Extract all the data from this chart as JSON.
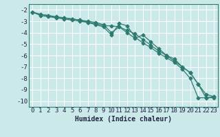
{
  "xlabel": "Humidex (Indice chaleur)",
  "background_color": "#cce9e9",
  "grid_color": "#ffffff",
  "line_color": "#2e7a6e",
  "xlim": [
    -0.5,
    23.5
  ],
  "ylim": [
    -10.5,
    -1.5
  ],
  "yticks": [
    -2,
    -3,
    -4,
    -5,
    -6,
    -7,
    -8,
    -9,
    -10
  ],
  "xticks": [
    0,
    1,
    2,
    3,
    4,
    5,
    6,
    7,
    8,
    9,
    10,
    11,
    12,
    13,
    14,
    15,
    16,
    17,
    18,
    19,
    20,
    21,
    22,
    23
  ],
  "series": [
    {
      "x": [
        0,
        1,
        2,
        3,
        4,
        5,
        6,
        7,
        8,
        9,
        10,
        11,
        12,
        13,
        14,
        15,
        16,
        17,
        18,
        19,
        20,
        21,
        22,
        23
      ],
      "y": [
        -2.2,
        -2.5,
        -2.6,
        -2.7,
        -2.8,
        -2.9,
        -3.0,
        -3.1,
        -3.3,
        -3.5,
        -4.2,
        -3.2,
        -3.4,
        -4.4,
        -4.9,
        -5.3,
        -5.8,
        -6.2,
        -6.6,
        -7.2,
        -8.0,
        -9.7,
        -9.7,
        -9.7
      ]
    },
    {
      "x": [
        0,
        1,
        2,
        3,
        4,
        5,
        6,
        7,
        8,
        9,
        10,
        11,
        12,
        13,
        14,
        15,
        16,
        17,
        18,
        19,
        20,
        21,
        22,
        23
      ],
      "y": [
        -2.2,
        -2.4,
        -2.5,
        -2.6,
        -2.7,
        -2.8,
        -2.9,
        -3.0,
        -3.1,
        -3.3,
        -4.0,
        -3.5,
        -4.0,
        -4.5,
        -4.2,
        -4.8,
        -5.4,
        -6.0,
        -6.3,
        -7.0,
        -7.5,
        -8.5,
        -9.7,
        -9.6
      ]
    },
    {
      "x": [
        0,
        1,
        2,
        3,
        4,
        5,
        6,
        7,
        8,
        9,
        10,
        11,
        12,
        13,
        14,
        15,
        16,
        17,
        18,
        19,
        20,
        21,
        22,
        23
      ],
      "y": [
        -2.2,
        -2.4,
        -2.5,
        -2.7,
        -2.7,
        -2.8,
        -2.9,
        -3.1,
        -3.2,
        -3.4,
        -3.4,
        -3.5,
        -3.8,
        -4.1,
        -4.6,
        -5.1,
        -5.6,
        -6.0,
        -6.5,
        -7.0,
        -7.5,
        -8.5,
        -9.4,
        -9.6
      ]
    }
  ],
  "tick_fontsize": 6.5,
  "xlabel_fontsize": 7.0,
  "tick_color": "#222244",
  "spine_color": "#2e7a6e"
}
